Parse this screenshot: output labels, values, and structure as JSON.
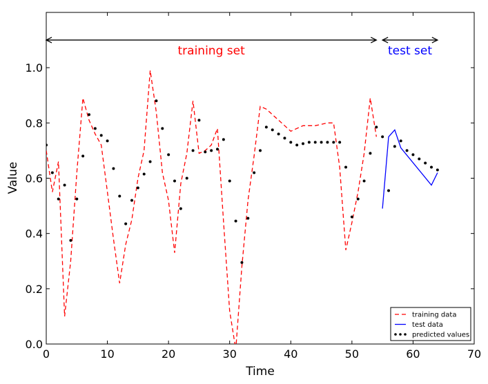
{
  "chart_data": {
    "type": "line",
    "xlabel": "Time",
    "ylabel": "Value",
    "xlim": [
      0,
      70
    ],
    "ylim": [
      0,
      1.2
    ],
    "xticks": [
      "0",
      "10",
      "20",
      "30",
      "40",
      "50",
      "60",
      "70"
    ],
    "yticks": [
      "0.0",
      "0.2",
      "0.4",
      "0.6",
      "0.8",
      "1.0"
    ],
    "grid": false,
    "legend_position": "bottom-right",
    "annotations": {
      "training": {
        "label": "training set",
        "from": 0,
        "to": 54,
        "y": 1.1,
        "color": "#ff0000"
      },
      "test": {
        "label": "test set",
        "from": 55,
        "to": 64,
        "y": 1.1,
        "color": "#0000ff"
      }
    },
    "series": [
      {
        "name": "training data",
        "style": "dashed",
        "color": "#ff0000",
        "x": [
          0,
          1,
          2,
          3,
          4,
          5,
          6,
          7,
          8,
          9,
          10,
          11,
          12,
          13,
          14,
          15,
          16,
          17,
          18,
          19,
          20,
          21,
          22,
          23,
          24,
          25,
          26,
          27,
          28,
          29,
          30,
          31,
          32,
          33,
          34,
          35,
          36,
          37,
          38,
          39,
          40,
          41,
          42,
          43,
          44,
          45,
          46,
          47,
          48,
          49,
          50,
          51,
          52,
          53,
          54
        ],
        "y": [
          0.7,
          0.55,
          0.66,
          0.1,
          0.3,
          0.62,
          0.89,
          0.81,
          0.76,
          0.72,
          0.55,
          0.38,
          0.22,
          0.36,
          0.45,
          0.6,
          0.7,
          0.99,
          0.84,
          0.62,
          0.52,
          0.33,
          0.58,
          0.69,
          0.88,
          0.69,
          0.7,
          0.72,
          0.78,
          0.44,
          0.12,
          -0.02,
          0.28,
          0.52,
          0.68,
          0.86,
          0.85,
          0.83,
          0.81,
          0.79,
          0.77,
          0.78,
          0.79,
          0.79,
          0.79,
          0.795,
          0.8,
          0.8,
          0.64,
          0.34,
          0.44,
          0.55,
          0.69,
          0.89,
          0.75
        ]
      },
      {
        "name": "test data",
        "style": "solid",
        "color": "#0000ff",
        "x": [
          55,
          56,
          57,
          58,
          63,
          64
        ],
        "y": [
          0.49,
          0.75,
          0.775,
          0.71,
          0.575,
          0.62
        ]
      },
      {
        "name": "predicted values",
        "style": "dots",
        "color": "#000000",
        "x": [
          0,
          1,
          2,
          3,
          4,
          5,
          6,
          7,
          8,
          9,
          10,
          11,
          12,
          13,
          14,
          15,
          16,
          17,
          18,
          19,
          20,
          21,
          22,
          23,
          24,
          25,
          26,
          27,
          28,
          29,
          30,
          31,
          32,
          33,
          34,
          35,
          36,
          37,
          38,
          39,
          40,
          41,
          42,
          43,
          44,
          45,
          46,
          47,
          48,
          49,
          50,
          51,
          52,
          53,
          54,
          55,
          56,
          57,
          58,
          59,
          60,
          61,
          62,
          63,
          64
        ],
        "y": [
          0.72,
          0.62,
          0.525,
          0.575,
          0.375,
          0.525,
          0.68,
          0.83,
          0.78,
          0.755,
          0.735,
          0.635,
          0.535,
          0.435,
          0.52,
          0.565,
          0.615,
          0.66,
          0.88,
          0.78,
          0.685,
          0.59,
          0.49,
          0.6,
          0.7,
          0.81,
          0.695,
          0.7,
          0.705,
          0.74,
          0.59,
          0.445,
          0.295,
          0.455,
          0.62,
          0.7,
          0.785,
          0.775,
          0.76,
          0.745,
          0.73,
          0.72,
          0.725,
          0.73,
          0.73,
          0.73,
          0.73,
          0.73,
          0.73,
          0.64,
          0.46,
          0.525,
          0.59,
          0.69,
          0.785,
          0.75,
          0.555,
          0.715,
          0.735,
          0.7,
          0.685,
          0.67,
          0.655,
          0.64,
          0.63
        ]
      }
    ]
  }
}
